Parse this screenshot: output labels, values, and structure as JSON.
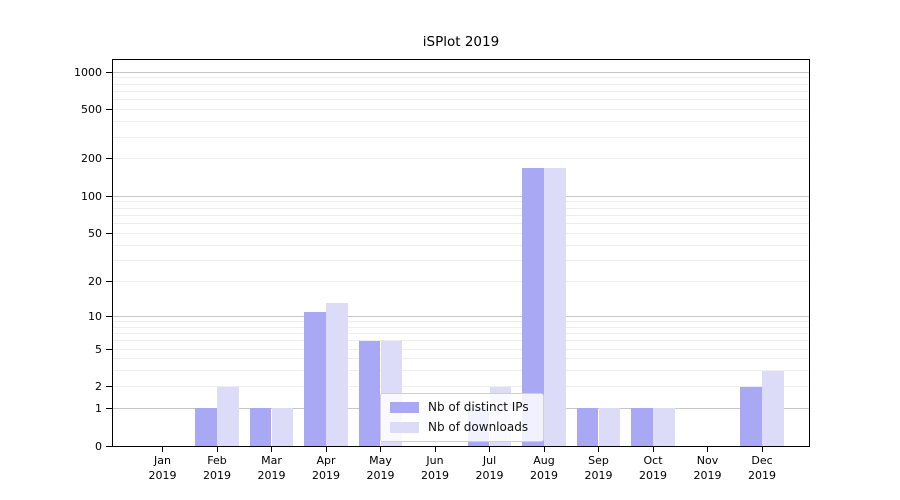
{
  "title": "iSPlot 2019",
  "colors": {
    "distinct_ips": "#a8a8f5",
    "downloads": "#dcdcf8",
    "grid_major": "#c7c7c7",
    "grid_minor": "#ededed",
    "axis": "#000000"
  },
  "legend": {
    "items": [
      {
        "label": "Nb of distinct IPs",
        "color_key": "distinct_ips"
      },
      {
        "label": "Nb of downloads",
        "color_key": "downloads"
      }
    ]
  },
  "chart_data": {
    "type": "bar",
    "title": "iSPlot 2019",
    "scale": "log1p",
    "grid": true,
    "legend_position": "lower center",
    "categories": [
      "Jan",
      "Feb",
      "Mar",
      "Apr",
      "May",
      "Jun",
      "Jul",
      "Aug",
      "Sep",
      "Oct",
      "Nov",
      "Dec"
    ],
    "category_year": "2019",
    "series": [
      {
        "name": "Nb of distinct IPs",
        "color_key": "distinct_ips",
        "values": [
          0,
          1,
          1,
          11,
          6,
          0,
          1,
          170,
          1,
          1,
          0,
          2
        ]
      },
      {
        "name": "Nb of downloads",
        "color_key": "downloads",
        "values": [
          0,
          2,
          1,
          13,
          6,
          0,
          2,
          170,
          1,
          1,
          0,
          3
        ]
      }
    ],
    "y_ticks": [
      0,
      1,
      2,
      5,
      10,
      20,
      50,
      100,
      200,
      500,
      1000
    ],
    "ylim": [
      0,
      1250
    ],
    "xlabel": "",
    "ylabel": ""
  }
}
